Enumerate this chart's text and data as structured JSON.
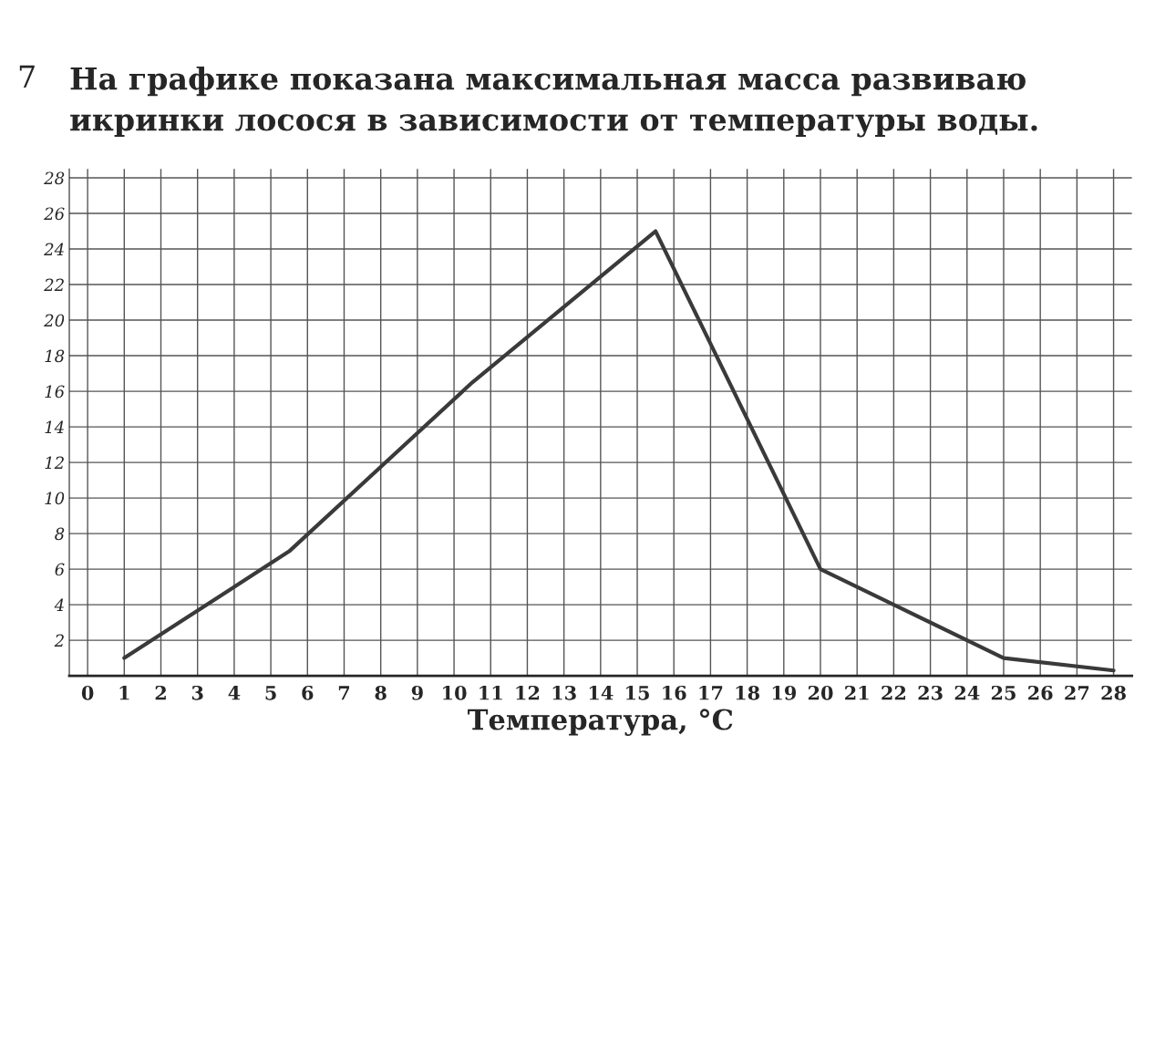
{
  "chart_data": {
    "type": "line",
    "title": "На графике показана максимальная масса развиваю\nикринки лосося в зависимости от температуры воды.",
    "xlabel": "Температура, °C",
    "annotations": [
      "7"
    ],
    "series": [
      {
        "color": "#3a3a3a",
        "x": [
          1,
          5.5,
          10.5,
          15.5,
          20,
          22,
          25,
          28
        ],
        "values": [
          1,
          7,
          16.5,
          25,
          6,
          4,
          1,
          0.3
        ]
      }
    ],
    "xlim": [
      -0.5,
      28.5
    ],
    "ylim": [
      0,
      28.5
    ],
    "xticks": [
      0,
      1,
      2,
      3,
      4,
      5,
      6,
      7,
      8,
      9,
      10,
      11,
      12,
      13,
      14,
      15,
      16,
      17,
      18,
      19,
      20,
      21,
      22,
      23,
      24,
      25,
      26,
      27,
      28
    ],
    "yticks": [
      2,
      4,
      6,
      8,
      10,
      12,
      14,
      16,
      18,
      20,
      22,
      24,
      26,
      28
    ],
    "grid": true,
    "line_style": "solid",
    "marker": "none"
  }
}
